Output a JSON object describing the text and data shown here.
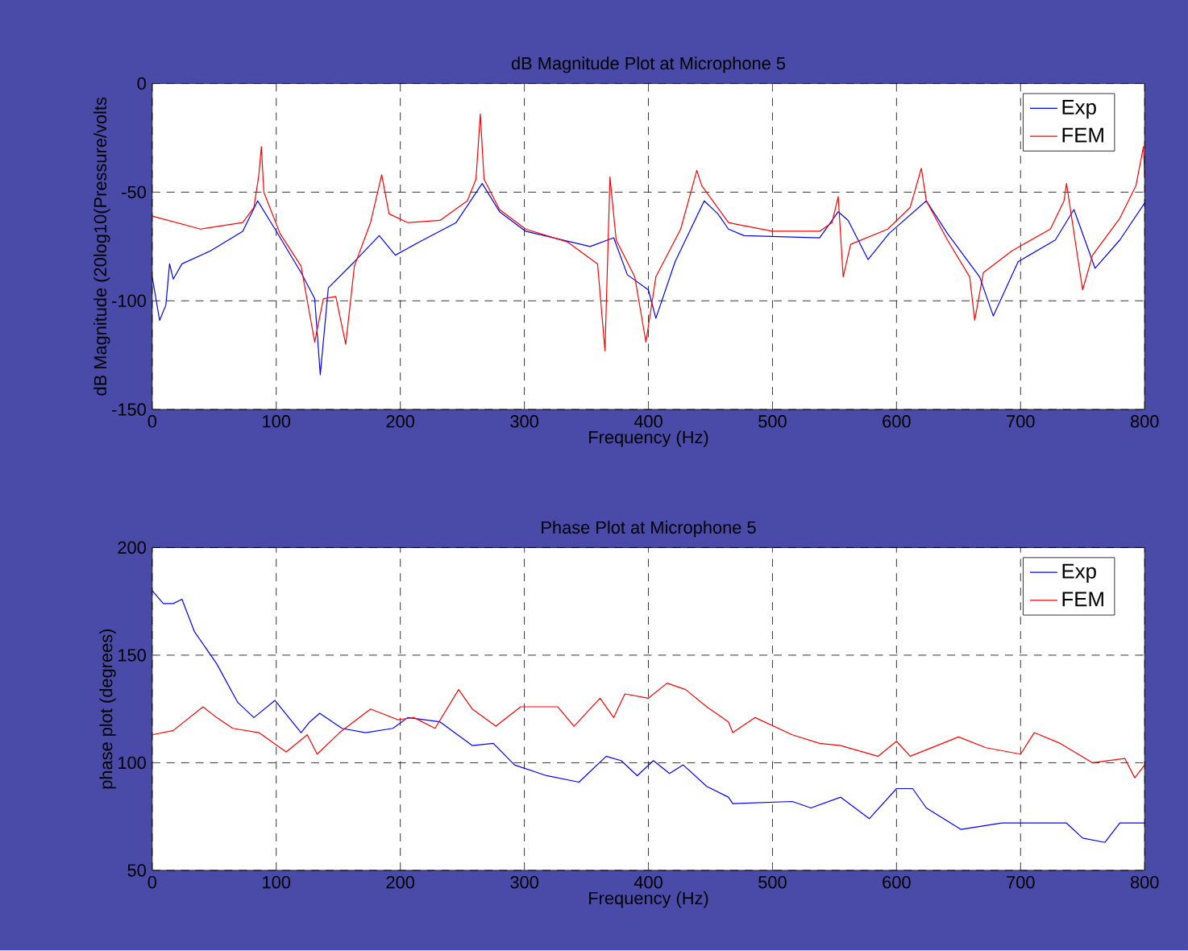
{
  "chart_data": [
    {
      "type": "line",
      "title": "dB Magnitude Plot at Microphone 5",
      "xlabel": "Frequency (Hz)",
      "ylabel": "dB Magnitude (20log10(Pressure/volts",
      "xlim": [
        0,
        800
      ],
      "xticks": [
        0,
        100,
        200,
        300,
        400,
        500,
        600,
        700,
        800
      ],
      "ylim": [
        -150,
        0
      ],
      "yticks": [
        -150,
        -100,
        -50,
        0
      ],
      "grid": true,
      "legend": "top right",
      "series": [
        {
          "name": "Exp",
          "color": "#0000ff",
          "x": [
            0,
            6,
            11,
            14,
            17,
            24,
            47,
            73,
            85,
            99,
            120,
            131,
            135.5,
            142,
            163,
            183,
            196,
            215,
            245,
            266,
            280,
            301,
            353,
            372,
            383,
            400,
            406,
            421.5,
            445,
            456,
            464.5,
            477,
            538,
            553,
            561,
            577,
            594,
            624,
            641,
            667,
            678,
            698,
            728,
            743,
            760,
            780,
            800
          ],
          "values": [
            -89,
            -109,
            -102,
            -83,
            -90,
            -83,
            -77,
            -68,
            -54,
            -67,
            -87,
            -99,
            -134,
            -94,
            -82,
            -70,
            -79,
            -73,
            -64,
            -46,
            -59,
            -68,
            -75,
            -71,
            -88,
            -95,
            -108,
            -82,
            -54,
            -60,
            -67,
            -70,
            -71,
            -59,
            -63,
            -81,
            -69,
            -54,
            -69,
            -89,
            -107,
            -82,
            -72,
            -58,
            -85,
            -72,
            -55
          ]
        },
        {
          "name": "FEM",
          "color": "#ff0000",
          "x": [
            0,
            39,
            73,
            82,
            86,
            88,
            90,
            103,
            120,
            131,
            138,
            148,
            156,
            163,
            176,
            185,
            191,
            206,
            232,
            254,
            261,
            264.5,
            267.5,
            280,
            301,
            335,
            359,
            365,
            369,
            374,
            389,
            398,
            406,
            426,
            439,
            443,
            464.5,
            473,
            500,
            538,
            548,
            553,
            557,
            563,
            593,
            611,
            620,
            624,
            641,
            659,
            663,
            670,
            693,
            724,
            735,
            737,
            750,
            758,
            780,
            793,
            799,
            800
          ],
          "values": [
            -61,
            -67,
            -64,
            -57,
            -42,
            -29,
            -50,
            -69,
            -84,
            -119,
            -99,
            -98,
            -120,
            -84,
            -64,
            -42,
            -60,
            -64,
            -63,
            -54,
            -44,
            -14,
            -44,
            -58,
            -67,
            -73,
            -83,
            -123,
            -43,
            -72,
            -89,
            -119,
            -89,
            -67,
            -40,
            -47,
            -64,
            -65,
            -68,
            -68,
            -64,
            -52,
            -89,
            -74,
            -67,
            -57,
            -39,
            -54,
            -72,
            -89,
            -109,
            -87,
            -77,
            -67,
            -54,
            -46,
            -95,
            -79,
            -62,
            -47,
            -29,
            -43
          ]
        }
      ]
    },
    {
      "type": "line",
      "title": "Phase Plot at Microphone 5",
      "xlabel": "Frequency (Hz)",
      "ylabel": "phase plot (degrees)",
      "xlim": [
        0,
        800
      ],
      "xticks": [
        0,
        100,
        200,
        300,
        400,
        500,
        600,
        700,
        800
      ],
      "ylim": [
        50,
        200
      ],
      "yticks": [
        50,
        100,
        150,
        200
      ],
      "grid": true,
      "legend": "top right",
      "series": [
        {
          "name": "Exp",
          "color": "#0000ff",
          "x": [
            0,
            9,
            17,
            24,
            34,
            52,
            69,
            82,
            99,
            120,
            127,
            135,
            153,
            172,
            194,
            206,
            232,
            258,
            275,
            292,
            318,
            344,
            366,
            378,
            391,
            404,
            417,
            428,
            447,
            464.5,
            468,
            516,
            531,
            555,
            578,
            600,
            613,
            624,
            652,
            685,
            737,
            750,
            768,
            780,
            800
          ],
          "values": [
            180,
            174,
            174,
            176,
            161,
            146,
            128,
            121,
            129,
            114,
            119,
            123,
            116,
            114,
            116,
            121,
            119,
            108,
            109,
            99,
            94,
            91,
            103,
            101,
            94,
            101,
            95,
            99,
            89,
            84,
            81,
            82,
            79,
            84,
            74,
            88,
            88,
            79,
            69,
            72,
            72,
            65,
            63,
            72,
            72
          ]
        },
        {
          "name": "FEM",
          "color": "#ff0000",
          "x": [
            0,
            17,
            41,
            52,
            65,
            86,
            108,
            125,
            133,
            151,
            176,
            198,
            211,
            228,
            247,
            258,
            277,
            297,
            327,
            340,
            361,
            372,
            381,
            400,
            415,
            430,
            447,
            464.5,
            468,
            486,
            516,
            538,
            555,
            585,
            600,
            611,
            650,
            672,
            700,
            711,
            732,
            758,
            784,
            792,
            800
          ],
          "values": [
            113,
            115,
            126,
            121,
            116,
            114,
            105,
            113,
            104,
            114,
            125,
            120,
            121,
            116,
            134,
            125,
            117,
            126,
            126,
            117,
            130,
            121,
            132,
            130,
            137,
            134,
            126,
            119,
            114,
            121,
            113,
            109,
            108,
            103,
            110,
            103,
            112,
            107,
            104,
            114,
            109,
            100,
            102,
            93,
            99
          ]
        }
      ]
    }
  ]
}
